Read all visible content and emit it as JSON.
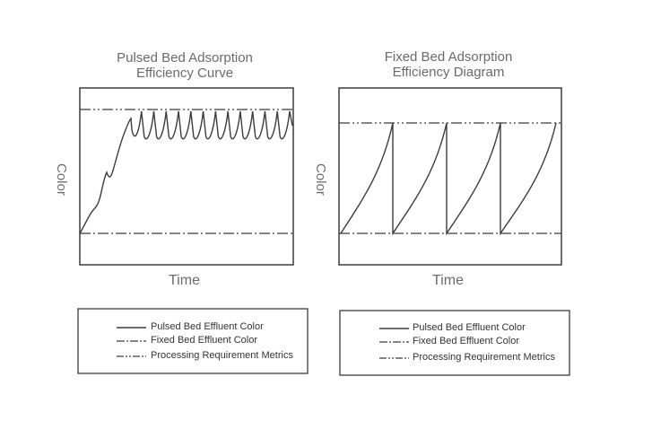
{
  "colors": {
    "line": "#3c3c3c",
    "text": "#6b6b6b"
  },
  "left_panel": {
    "title": "Pulsed Bed Adsorption\nEfficiency Curve",
    "ylabel": "Color",
    "xlabel": "Time",
    "legend": [
      {
        "label": "Pulsed Bed Effluent Color",
        "style": "solid"
      },
      {
        "label": "Fixed Bed Effluent Color",
        "style": "dash-dot"
      },
      {
        "label": "Processing Requirement Metrics",
        "style": "dash-dot-dot"
      }
    ]
  },
  "right_panel": {
    "title": "Fixed Bed Adsorption\nEfficiency Diagram",
    "ylabel": "Color",
    "xlabel": "Time",
    "legend": [
      {
        "label": "Pulsed Bed Effluent Color",
        "style": "solid"
      },
      {
        "label": "Fixed Bed Effluent Color",
        "style": "dash-dot"
      },
      {
        "label": "Processing Requirement Metrics",
        "style": "dash-dot-dot"
      }
    ]
  }
}
